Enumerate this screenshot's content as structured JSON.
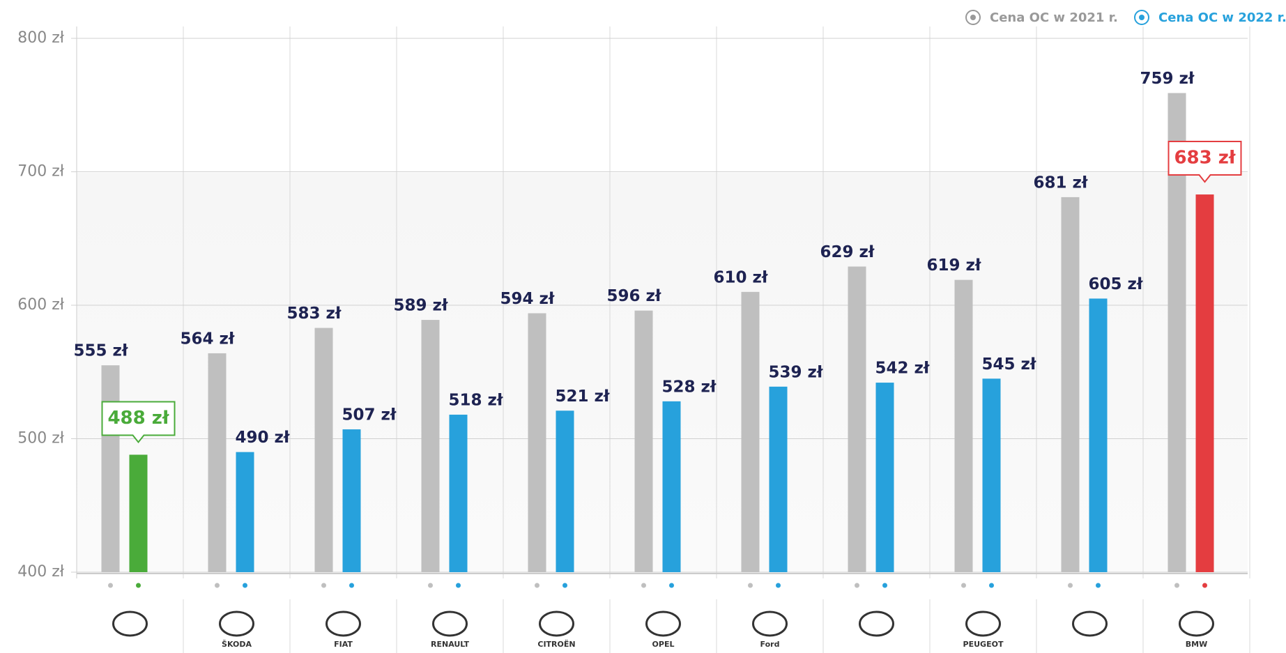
{
  "chart_data": {
    "type": "bar",
    "categories": [
      null,
      "ŠKODA",
      "FIAT",
      "RENAULT",
      "CITROËN",
      "OPEL",
      "Ford",
      null,
      "PEUGEOT",
      null,
      "BMW"
    ],
    "series": [
      {
        "name": "Cena OC w 2021 r.",
        "color": "#bfbfbf",
        "values": [
          555,
          564,
          583,
          589,
          594,
          596,
          610,
          629,
          619,
          681,
          759
        ],
        "value_labels": [
          "555 zł",
          "564 zł",
          "583 zł",
          "589 zł",
          "594 zł",
          "596 zł",
          "610 zł",
          "629 zł",
          "619 zł",
          "681 zł",
          "759 zł"
        ]
      },
      {
        "name": "Cena OC w 2022 r.",
        "color": "#27a1dc",
        "colors": [
          "#4aab3a",
          "#27a1dc",
          "#27a1dc",
          "#27a1dc",
          "#27a1dc",
          "#27a1dc",
          "#27a1dc",
          "#27a1dc",
          "#27a1dc",
          "#27a1dc",
          "#e43d40"
        ],
        "values": [
          488,
          490,
          507,
          518,
          521,
          528,
          539,
          542,
          545,
          605,
          683
        ],
        "value_labels": [
          "488 zł",
          "490 zł",
          "507 zł",
          "518 zł",
          "521 zł",
          "528 zł",
          "539 zł",
          "542 zł",
          "545 zł",
          "605 zł",
          "683 zł"
        ]
      }
    ],
    "ylim": [
      400,
      800
    ],
    "yticks": [
      {
        "value": 400,
        "label": "400 zł"
      },
      {
        "value": 500,
        "label": "500 zł"
      },
      {
        "value": 600,
        "label": "600 zł"
      },
      {
        "value": 700,
        "label": "700 zł"
      },
      {
        "value": 800,
        "label": "800 zł"
      }
    ],
    "grid": true,
    "legend": "top-right"
  }
}
